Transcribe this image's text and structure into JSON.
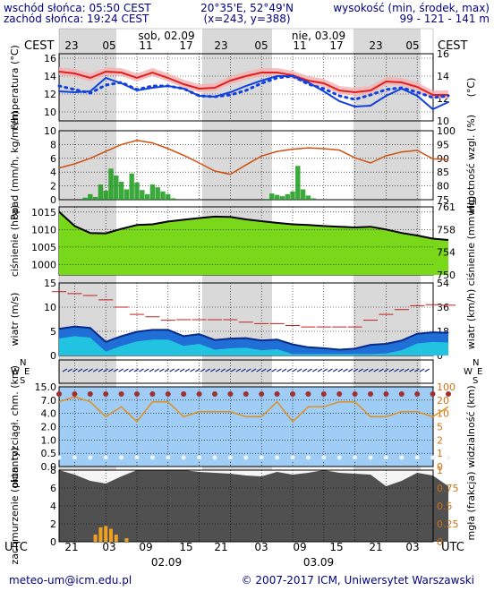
{
  "header": {
    "sunrise": "wschód słońca: 05:50 CEST",
    "sunset": "zachód słońca: 19:24 CEST",
    "coords": "20°35'E, 52°49'N",
    "grid": "(x=243, y=388)",
    "elevation_label": "wysokość (min, środek, max)",
    "elevation_values": "99 - 121 - 141 m"
  },
  "timeline": {
    "tz_top": "CEST",
    "tz_bottom": "UTC",
    "top_hours": [
      "23",
      "05",
      "11",
      "17",
      "23",
      "05",
      "11",
      "17",
      "23",
      "05"
    ],
    "bottom_hours": [
      "21",
      "03",
      "09",
      "15",
      "21",
      "03",
      "09",
      "15",
      "21",
      "03"
    ],
    "day_top": [
      "sob, 02.09",
      "nie, 03.09"
    ],
    "day_bottom": [
      "02.09",
      "03.09"
    ]
  },
  "footer": {
    "email": "meteo-um@icm.edu.pl",
    "copyright": "© 2007-2017 ICM, Uniwersytet Warszawski"
  },
  "colors": {
    "temp_line": "#e02020",
    "dew_line": "#1040e0",
    "wind_band": "#0a7a1a",
    "pressure_fill": "#7ad81a",
    "precip_bar": "#1a9a1a",
    "humidity_line": "#d05010",
    "sky": "#9fcdf5",
    "cloud_dark": "#505050",
    "fog_bar": "#f0a020"
  },
  "chart_data": [
    {
      "type": "line",
      "name": "temperature",
      "ylabel": "temperatura (°C)",
      "ylabel_right": "(°C)",
      "ylim": [
        9,
        16.5
      ],
      "yticks": [
        10,
        12,
        14,
        16
      ],
      "x": [
        0,
        3,
        6,
        9,
        12,
        15,
        18,
        21,
        24,
        27,
        30,
        33,
        36,
        39,
        42,
        45,
        48,
        51,
        54,
        57,
        60,
        63,
        66,
        69,
        72,
        75
      ],
      "series": [
        {
          "values": [
            14.5,
            14.3,
            13.8,
            14.5,
            14.4,
            13.8,
            14.4,
            13.8,
            13.1,
            12.6,
            12.7,
            13.5,
            14.0,
            14.4,
            14.4,
            14.1,
            13.5,
            13.2,
            12.4,
            12.2,
            12.4,
            13.4,
            13.3,
            12.8,
            11.9,
            11.9
          ]
        },
        {
          "values": [
            12.9,
            12.5,
            12.1,
            13.0,
            13.3,
            12.5,
            12.9,
            12.9,
            12.6,
            11.8,
            11.7,
            11.9,
            12.4,
            13.2,
            13.8,
            14.0,
            13.1,
            12.6,
            11.8,
            11.4,
            11.9,
            12.5,
            12.7,
            12.2,
            11.6,
            11.8
          ]
        },
        {
          "values": [
            12.3,
            12.2,
            12.3,
            13.8,
            13.2,
            12.4,
            12.7,
            12.9,
            12.6,
            11.8,
            11.7,
            12.2,
            12.9,
            13.5,
            14.0,
            14.0,
            13.3,
            12.3,
            11.2,
            10.6,
            10.7,
            11.8,
            12.6,
            11.8,
            10.3,
            11.1
          ]
        }
      ]
    },
    {
      "type": "bar",
      "name": "precipitation",
      "ylabel": "opad (mm/h, kg/m²/h)",
      "ylabel_right": "wilgotność wzgl. (%)",
      "ylim": [
        0,
        10
      ],
      "yticks": [
        0,
        2,
        4,
        6,
        8,
        10
      ],
      "y2lim": [
        75,
        100
      ],
      "y2ticks": [
        75,
        80,
        85,
        90,
        95,
        100
      ],
      "x": [
        5,
        6,
        7,
        8,
        9,
        10,
        11,
        12,
        13,
        14,
        15,
        16,
        17,
        18,
        19,
        20,
        21,
        22,
        40,
        41,
        42,
        43,
        44,
        45,
        46,
        47,
        48,
        49
      ],
      "values": [
        0.3,
        0.8,
        0.4,
        2.2,
        1.3,
        4.5,
        3.5,
        2.6,
        1.5,
        3.8,
        2.5,
        1.4,
        0.8,
        2.2,
        1.8,
        1.2,
        0.8,
        0.2,
        0.1,
        0.9,
        0.7,
        0.5,
        0.8,
        1.2,
        4.9,
        1.5,
        0.6,
        0.2
      ],
      "humidity_x": [
        0,
        3,
        6,
        9,
        12,
        15,
        18,
        21,
        24,
        27,
        30,
        33,
        36,
        39,
        42,
        45,
        48,
        51,
        54,
        57,
        60,
        63,
        66,
        69,
        72,
        75
      ],
      "humidity": [
        86.5,
        88,
        90,
        92.5,
        95,
        96.5,
        95.6,
        93.5,
        91.1,
        88.3,
        85.4,
        84.2,
        87.6,
        90.8,
        92.5,
        93.3,
        93.8,
        93.5,
        93.0,
        90.2,
        88.3,
        90.9,
        92.3,
        92.9,
        89.8,
        89.5
      ]
    },
    {
      "type": "area",
      "name": "pressure",
      "ylabel": "ciśnienie (hPa)",
      "ylabel_right": "ciśnienie (mm Hg)",
      "ylim": [
        997,
        1016.5
      ],
      "yticks": [
        1000,
        1005,
        1010,
        1015
      ],
      "y2ticks": [
        750,
        754,
        758,
        761
      ],
      "x": [
        0,
        3,
        6,
        9,
        12,
        15,
        18,
        21,
        24,
        27,
        30,
        33,
        36,
        39,
        42,
        45,
        48,
        51,
        54,
        57,
        60,
        63,
        66,
        69,
        72,
        75
      ],
      "values": [
        1015.1,
        1011.0,
        1009.0,
        1008.9,
        1010.2,
        1011.3,
        1011.5,
        1012.3,
        1012.8,
        1013.3,
        1013.7,
        1013.6,
        1012.9,
        1012.4,
        1011.9,
        1011.5,
        1011.3,
        1011.0,
        1010.8,
        1010.6,
        1010.8,
        1010.0,
        1009.0,
        1008.3,
        1007.4,
        1007.0
      ]
    },
    {
      "type": "line",
      "name": "wind",
      "ylabel": "wiatr (m/s)",
      "ylabel_right": "wiatr (km/h)",
      "ylim": [
        0,
        15
      ],
      "yticks": [
        0,
        5,
        10,
        15
      ],
      "y2ticks": [
        0,
        18,
        36,
        54
      ],
      "x": [
        0,
        3,
        6,
        9,
        12,
        15,
        18,
        21,
        24,
        27,
        30,
        33,
        36,
        39,
        42,
        45,
        48,
        51,
        54,
        57,
        60,
        63,
        66,
        69,
        72,
        75
      ],
      "series": [
        {
          "values": [
            5.5,
            6.0,
            5.7,
            2.8,
            4.0,
            4.9,
            5.3,
            5.3,
            4.0,
            4.4,
            3.2,
            3.5,
            3.6,
            3.1,
            3.3,
            2.3,
            1.7,
            1.5,
            1.2,
            1.4,
            2.2,
            2.4,
            3.1,
            4.5,
            4.8,
            4.7
          ]
        },
        {
          "values": [
            13.2,
            12.8,
            12.4,
            11.5,
            10.0,
            8.5,
            8.0,
            7.3,
            7.4,
            7.4,
            7.4,
            7.4,
            6.9,
            6.6,
            6.6,
            6.2,
            5.9,
            5.9,
            5.9,
            5.9,
            7.3,
            8.5,
            9.5,
            10.3,
            10.5,
            10.4
          ]
        }
      ]
    },
    {
      "type": "scatter",
      "name": "visibility",
      "ylabel": "pion. rozciągł. chm. (km)",
      "ylabel_right": "widzialność (km)",
      "ylim": [
        0,
        16
      ],
      "yticks": [
        0.0,
        0.5,
        1.0,
        2.0,
        4.0,
        7.0,
        15.0
      ],
      "y2ticks": [
        0,
        1,
        2,
        5,
        10,
        20,
        100
      ],
      "x": [
        0,
        3,
        6,
        9,
        12,
        15,
        18,
        21,
        24,
        27,
        30,
        33,
        36,
        39,
        42,
        45,
        48,
        51,
        54,
        57,
        60,
        63,
        66,
        69,
        72,
        75
      ],
      "values": [
        13,
        14,
        13,
        10,
        12,
        9,
        13,
        13,
        10,
        11,
        11,
        11,
        10,
        10,
        13,
        9,
        12,
        12,
        13,
        13,
        10,
        10,
        11,
        11,
        10,
        12
      ]
    },
    {
      "type": "area",
      "name": "clouds",
      "ylabel": "zachmurzenie (oktanty)",
      "ylabel_right": "mgła (frakcja)",
      "ylim": [
        0,
        8
      ],
      "yticks": [
        0,
        2,
        4,
        6,
        8
      ],
      "y2lim": [
        0,
        1
      ],
      "y2ticks": [
        0,
        0.25,
        0.5,
        0.75,
        1
      ],
      "x": [
        0,
        3,
        6,
        9,
        12,
        15,
        18,
        21,
        24,
        27,
        30,
        33,
        36,
        39,
        42,
        45,
        48,
        51,
        54,
        57,
        60,
        63,
        66,
        69,
        72,
        75
      ],
      "values": [
        8,
        7.5,
        6.8,
        6.5,
        7.3,
        8,
        8,
        8,
        8,
        7.8,
        7.7,
        7.6,
        7.4,
        7.3,
        7.8,
        7.5,
        7.7,
        8,
        7.7,
        7.6,
        7.5,
        6.2,
        6.8,
        7.7,
        7.4,
        6.2
      ]
    }
  ]
}
